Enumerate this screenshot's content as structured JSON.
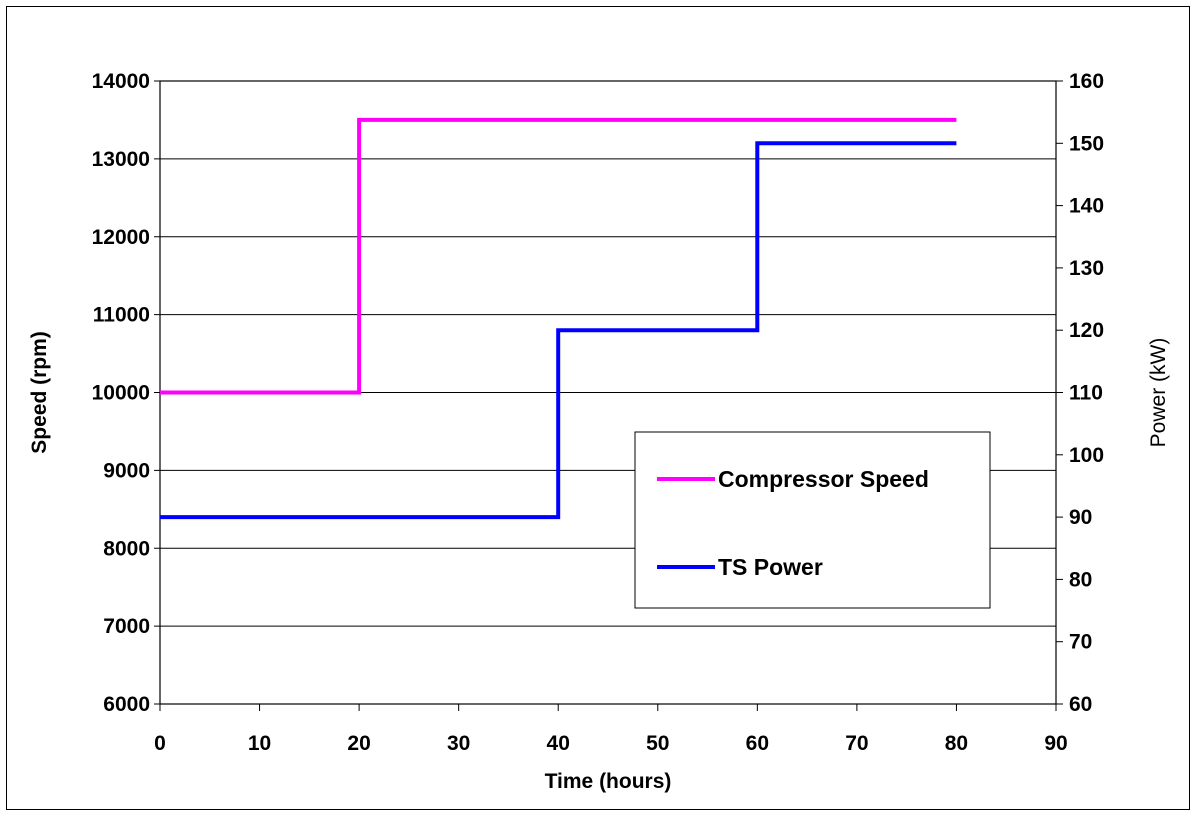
{
  "chart_data": {
    "type": "line",
    "title": "",
    "xlabel": "Time (hours)",
    "ylabel_left": "Speed (rpm)",
    "ylabel_right": "Power (kW)",
    "xlim": [
      0,
      90
    ],
    "ylim_left": [
      6000,
      14000
    ],
    "ylim_right": [
      60,
      160
    ],
    "x_ticks": [
      "0",
      "10",
      "20",
      "30",
      "40",
      "50",
      "60",
      "70",
      "80",
      "90"
    ],
    "y_left_ticks": [
      "6000",
      "7000",
      "8000",
      "9000",
      "10000",
      "11000",
      "12000",
      "13000",
      "14000"
    ],
    "y_right_ticks": [
      "60",
      "70",
      "80",
      "90",
      "100",
      "110",
      "120",
      "130",
      "140",
      "150",
      "160"
    ],
    "grid": "horizontal",
    "legend_position": "center-right",
    "series": [
      {
        "name": "Compressor Speed",
        "axis": "left",
        "color": "#ff00ff",
        "x": [
          0,
          20,
          20,
          80
        ],
        "y": [
          10000,
          10000,
          13500,
          13500
        ]
      },
      {
        "name": "TS Power",
        "axis": "right",
        "color": "#0000ff",
        "x": [
          0,
          40,
          40,
          60,
          60,
          80
        ],
        "y": [
          90,
          90,
          120,
          120,
          150,
          150
        ]
      }
    ]
  }
}
